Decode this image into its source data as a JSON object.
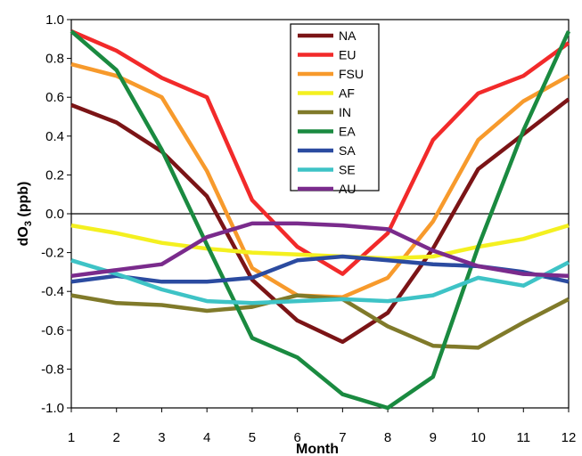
{
  "chart_data": {
    "type": "line",
    "xlabel": "Month",
    "ylabel_main": "dO",
    "ylabel_sub": "3",
    "ylabel_unit": " (ppb)",
    "xlim": [
      1,
      12
    ],
    "ylim": [
      -1.0,
      1.0
    ],
    "x": [
      1,
      2,
      3,
      4,
      5,
      6,
      7,
      8,
      9,
      10,
      11,
      12
    ],
    "x_ticks": [
      "1",
      "2",
      "3",
      "4",
      "5",
      "6",
      "7",
      "8",
      "9",
      "10",
      "11",
      "12"
    ],
    "y_ticks": [
      "1.0",
      "0.8",
      "0.6",
      "0.4",
      "0.2",
      "0.0",
      "-0.2",
      "-0.4",
      "-0.6",
      "-0.8",
      "-1.0"
    ],
    "grid": false,
    "legend_position": "top-center",
    "series": [
      {
        "name": "NA",
        "color": "#7b1416",
        "values": [
          0.56,
          0.47,
          0.32,
          0.09,
          -0.34,
          -0.55,
          -0.66,
          -0.51,
          -0.18,
          0.23,
          0.41,
          0.59
        ]
      },
      {
        "name": "EU",
        "color": "#f22a2a",
        "values": [
          0.94,
          0.84,
          0.7,
          0.6,
          0.07,
          -0.17,
          -0.31,
          -0.1,
          0.38,
          0.62,
          0.71,
          0.88
        ]
      },
      {
        "name": "FSU",
        "color": "#f79a2c",
        "values": [
          0.77,
          0.71,
          0.6,
          0.22,
          -0.28,
          -0.42,
          -0.43,
          -0.33,
          -0.04,
          0.38,
          0.58,
          0.71
        ]
      },
      {
        "name": "AF",
        "color": "#f4f020",
        "values": [
          -0.06,
          -0.1,
          -0.15,
          -0.18,
          -0.2,
          -0.21,
          -0.22,
          -0.23,
          -0.22,
          -0.17,
          -0.13,
          -0.06
        ]
      },
      {
        "name": "IN",
        "color": "#807a2a",
        "values": [
          -0.42,
          -0.46,
          -0.47,
          -0.5,
          -0.48,
          -0.42,
          -0.44,
          -0.58,
          -0.68,
          -0.69,
          -0.56,
          -0.44
        ]
      },
      {
        "name": "EA",
        "color": "#1a8a40",
        "values": [
          0.94,
          0.74,
          0.33,
          -0.16,
          -0.64,
          -0.74,
          -0.93,
          -1.0,
          -0.84,
          -0.17,
          0.43,
          0.94
        ]
      },
      {
        "name": "SA",
        "color": "#2b4ba0",
        "values": [
          -0.35,
          -0.32,
          -0.35,
          -0.35,
          -0.33,
          -0.24,
          -0.22,
          -0.24,
          -0.26,
          -0.27,
          -0.3,
          -0.35
        ]
      },
      {
        "name": "SE",
        "color": "#3ec3c6",
        "values": [
          -0.24,
          -0.31,
          -0.39,
          -0.45,
          -0.46,
          -0.45,
          -0.44,
          -0.45,
          -0.42,
          -0.33,
          -0.37,
          -0.25
        ]
      },
      {
        "name": "AU",
        "color": "#7a2b8c",
        "values": [
          -0.32,
          -0.29,
          -0.26,
          -0.12,
          -0.05,
          -0.05,
          -0.06,
          -0.08,
          -0.19,
          -0.27,
          -0.31,
          -0.32
        ]
      }
    ]
  }
}
